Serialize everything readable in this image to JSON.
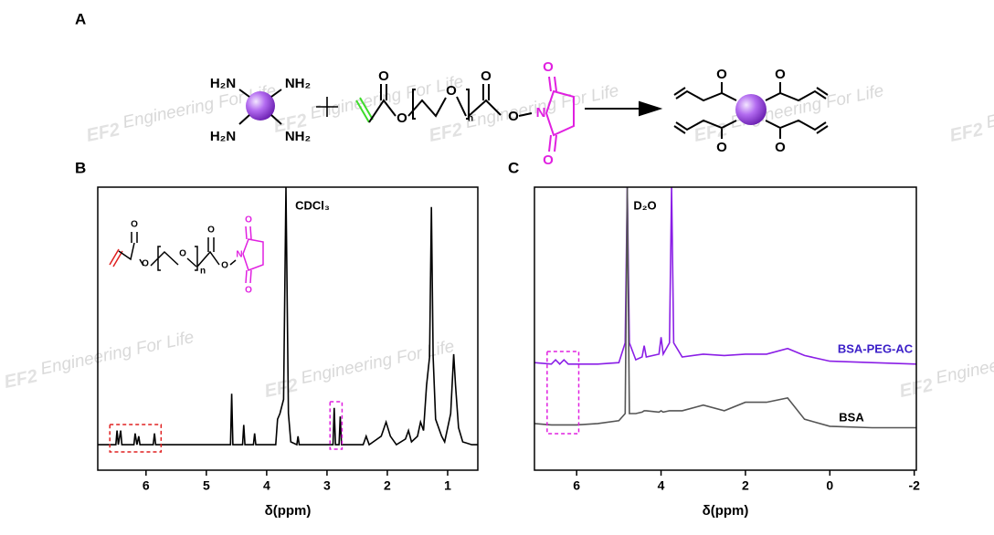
{
  "watermark": {
    "text": "Engineering For Life",
    "logo": "EF2"
  },
  "scheme": {
    "label": "A",
    "core": [
      "H₂N",
      "NH₂",
      "H₂N",
      "NH₂"
    ],
    "reagent": [
      "O",
      "O",
      "O",
      "n",
      "O",
      "O",
      "N",
      "O",
      "O"
    ],
    "product": [
      "O",
      "O",
      "O",
      "O"
    ],
    "inset": [
      "O",
      "O",
      "O",
      "n",
      "O",
      "O",
      "N",
      "O",
      "O"
    ]
  },
  "chart_data": [
    {
      "type": "line",
      "title": "B",
      "xlabel": "δ(ppm)",
      "annotation": "CDCl₃",
      "xlim": [
        6.8,
        0.5
      ],
      "xticks": [
        6,
        5,
        4,
        3,
        2,
        1
      ],
      "ylim": [
        0,
        100
      ],
      "x": [
        6.8,
        6.5,
        6.48,
        6.46,
        6.42,
        6.4,
        6.2,
        6.18,
        6.15,
        6.12,
        6.1,
        5.88,
        5.86,
        5.84,
        4.6,
        4.58,
        4.56,
        4.4,
        4.38,
        4.36,
        4.22,
        4.2,
        4.18,
        3.85,
        3.82,
        3.78,
        3.72,
        3.68,
        3.64,
        3.6,
        3.5,
        3.48,
        3.46,
        2.9,
        2.88,
        2.86,
        2.8,
        2.78,
        2.76,
        2.4,
        2.35,
        2.3,
        2.1,
        2.02,
        1.95,
        1.85,
        1.7,
        1.65,
        1.6,
        1.5,
        1.45,
        1.4,
        1.35,
        1.3,
        1.27,
        1.24,
        1.2,
        1.1,
        1.05,
        0.95,
        0.9,
        0.87,
        0.82,
        0.75,
        0.6,
        0.5
      ],
      "series": [
        {
          "color": "#000000",
          "values": [
            9,
            9,
            14,
            9,
            14,
            9,
            9,
            13,
            9,
            12,
            9,
            9,
            13,
            9,
            9,
            27,
            9,
            9,
            16,
            9,
            9,
            13,
            9,
            9,
            18,
            20,
            25,
            100,
            20,
            10,
            9,
            12,
            9,
            9,
            22,
            9,
            9,
            19,
            9,
            9,
            12,
            9,
            12,
            17,
            12,
            9,
            11,
            14,
            10,
            12,
            17,
            14,
            30,
            40,
            93,
            40,
            18,
            12,
            10,
            20,
            41,
            30,
            15,
            10,
            9,
            9
          ]
        }
      ]
    },
    {
      "type": "line",
      "title": "C",
      "xlabel": "δ(ppm)",
      "annotation": "D₂O",
      "xlim": [
        7,
        -2.05
      ],
      "xticks": [
        6,
        4,
        2,
        0,
        -2
      ],
      "ylim": [
        0,
        100
      ],
      "x": [
        7,
        6.6,
        6.5,
        6.4,
        6.3,
        6.2,
        6,
        5.5,
        5,
        4.85,
        4.8,
        4.75,
        4.6,
        4.45,
        4.4,
        4.35,
        4.05,
        4,
        3.95,
        3.8,
        3.75,
        3.7,
        3.5,
        3,
        2.5,
        2,
        1.5,
        1,
        0.6,
        0,
        -1,
        -2.05
      ],
      "series": [
        {
          "name": "BSA-PEG-AC",
          "color": "#8a1ee6",
          "values": [
            38,
            37.5,
            39,
            37.5,
            39,
            37.5,
            37.5,
            37.5,
            38,
            45,
            100,
            45,
            39,
            40,
            44,
            40,
            41,
            47,
            41,
            45,
            100,
            45,
            40,
            41,
            40.5,
            41,
            41,
            43,
            40.5,
            38.5,
            38,
            37.5
          ]
        },
        {
          "name": "BSA",
          "color": "#555555",
          "values": [
            16.5,
            16,
            16,
            16,
            16,
            16,
            16,
            16.5,
            17.5,
            20,
            100,
            20,
            20,
            20.5,
            21,
            21,
            20.5,
            21,
            20.5,
            21,
            21,
            21,
            21,
            23,
            21,
            24,
            24,
            25.5,
            18,
            15.5,
            15,
            15
          ]
        }
      ]
    }
  ]
}
